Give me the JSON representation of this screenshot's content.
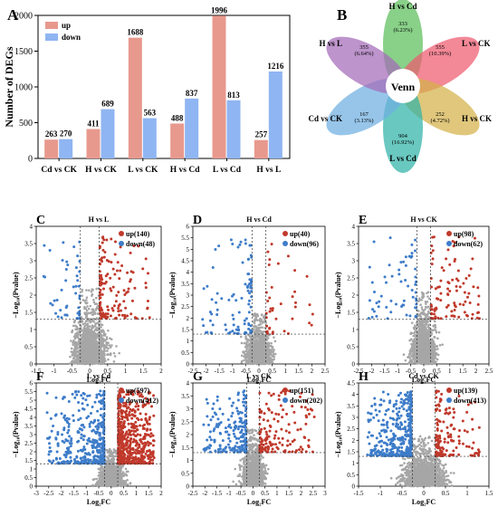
{
  "panels": {
    "A": "A",
    "B": "B",
    "C": "C",
    "D": "D",
    "E": "E",
    "F": "F",
    "G": "G",
    "H": "H"
  },
  "chart_data": [
    {
      "id": "A",
      "type": "bar",
      "ylabel": "Number of DEGs",
      "ylim": [
        0,
        2000
      ],
      "yticks": [
        0,
        500,
        1000,
        1500,
        2000
      ],
      "categories": [
        "Cd vs CK",
        "H vs CK",
        "L vs CK",
        "H vs Cd",
        "L vs Cd",
        "H vs L"
      ],
      "legend_placement": "top-left",
      "series": [
        {
          "name": "up",
          "color": "#E8998D",
          "values": [
            263,
            411,
            1688,
            488,
            1996,
            257
          ]
        },
        {
          "name": "down",
          "color": "#8FB5F2",
          "values": [
            270,
            689,
            563,
            837,
            813,
            1216
          ]
        }
      ]
    },
    {
      "id": "B",
      "type": "venn",
      "center_label": "Venn",
      "sets": [
        {
          "name": "H vs Cd",
          "count": "333",
          "pct": "(6.23%)",
          "color": "#5BBE5B"
        },
        {
          "name": "L vs CK",
          "count": "555",
          "pct": "(10.39%)",
          "color": "#EE5A6F"
        },
        {
          "name": "H vs CK",
          "count": "252",
          "pct": "(4.72%)",
          "color": "#D4B24A"
        },
        {
          "name": "L vs Cd",
          "count": "904",
          "pct": "(16.92%)",
          "color": "#2FB3A8"
        },
        {
          "name": "Cd vs CK",
          "count": "167",
          "pct": "(3.13%)",
          "color": "#6FAEE0"
        },
        {
          "name": "H vs L",
          "count": "355",
          "pct": "(6.64%)",
          "color": "#A46BB8"
        }
      ]
    },
    {
      "id": "C",
      "type": "scatter",
      "title": "H vs L",
      "xlabel": "Log₂FC",
      "ylabel": "−Log₁₀(Pvalue)",
      "xlim": [
        -1.5,
        2
      ],
      "xticks": [
        -1.5,
        -1,
        -0.5,
        0,
        0.5,
        1,
        1.5,
        2
      ],
      "ylim": [
        0,
        4
      ],
      "yticks": [
        0,
        0.5,
        1,
        1.5,
        2,
        2.5,
        3,
        3.5,
        4
      ],
      "legend": [
        {
          "name": "up(140)",
          "color": "#C0392B"
        },
        {
          "name": "down(48)",
          "color": "#3D7CC9"
        }
      ],
      "thresholds": {
        "fc": [
          -0.263,
          0.263
        ],
        "p": 1.301
      },
      "counts": {
        "up": 140,
        "down": 48,
        "ns": 1300
      },
      "seed": 11
    },
    {
      "id": "D",
      "type": "scatter",
      "title": "H vs Cd",
      "xlabel": "Log₂FC",
      "ylabel": "−Log₁₀(Pvalue)",
      "xlim": [
        -2.5,
        2.5
      ],
      "xticks": [
        -2.5,
        -2,
        -1.5,
        -1,
        -0.5,
        0,
        0.5,
        1,
        1.5,
        2,
        2.5
      ],
      "ylim": [
        0,
        6
      ],
      "yticks": [
        0,
        0.5,
        1,
        1.5,
        2,
        2.5,
        3,
        3.5,
        4,
        4.5,
        5,
        5.5,
        6
      ],
      "legend": [
        {
          "name": "up(40)",
          "color": "#C0392B"
        },
        {
          "name": "down(96)",
          "color": "#3D7CC9"
        }
      ],
      "thresholds": {
        "fc": [
          -0.263,
          0.263
        ],
        "p": 1.301
      },
      "counts": {
        "up": 40,
        "down": 96,
        "ns": 1300
      },
      "seed": 23
    },
    {
      "id": "E",
      "type": "scatter",
      "title": "H vs CK",
      "xlabel": "Log₂FC",
      "ylabel": "−Log₁₀(Pvalue)",
      "xlim": [
        -2.5,
        2.5
      ],
      "xticks": [
        -2.5,
        -2,
        -1.5,
        -1,
        -0.5,
        0,
        0.5,
        1,
        1.5,
        2,
        2.5
      ],
      "ylim": [
        0,
        4
      ],
      "yticks": [
        0,
        0.5,
        1,
        1.5,
        2,
        2.5,
        3,
        3.5,
        4
      ],
      "legend": [
        {
          "name": "up(98)",
          "color": "#C0392B"
        },
        {
          "name": "down(62)",
          "color": "#3D7CC9"
        }
      ],
      "thresholds": {
        "fc": [
          -0.263,
          0.263
        ],
        "p": 1.301
      },
      "counts": {
        "up": 98,
        "down": 62,
        "ns": 1300
      },
      "seed": 37
    },
    {
      "id": "F",
      "type": "scatter",
      "title": "L vs Cd",
      "xlabel": "Log₂FC",
      "ylabel": "−Log₁₀(Pvalue)",
      "xlim": [
        -3,
        2
      ],
      "xticks": [
        -3,
        -2.5,
        -2,
        -1.5,
        -1,
        -0.5,
        0,
        0.5,
        1,
        1.5,
        2
      ],
      "ylim": [
        0,
        6
      ],
      "yticks": [
        0,
        0.5,
        1,
        1.5,
        2,
        2.5,
        3,
        3.5,
        4,
        4.5,
        5,
        5.5,
        6
      ],
      "legend": [
        {
          "name": "up(597)",
          "color": "#C0392B"
        },
        {
          "name": "down(412)",
          "color": "#3D7CC9"
        }
      ],
      "thresholds": {
        "fc": [
          -0.263,
          0.263
        ],
        "p": 1.301
      },
      "counts": {
        "up": 597,
        "down": 412,
        "ns": 1400
      },
      "seed": 41
    },
    {
      "id": "G",
      "type": "scatter",
      "title": "L vs CK",
      "xlabel": "Log₂FC",
      "ylabel": "−Log₁₀(Pvalue)",
      "xlim": [
        -2.5,
        3
      ],
      "xticks": [
        -2.5,
        -2,
        -1.5,
        -1,
        -0.5,
        0,
        0.5,
        1,
        1.5,
        2,
        2.5,
        3
      ],
      "ylim": [
        0,
        4
      ],
      "yticks": [
        0,
        0.5,
        1,
        1.5,
        2,
        2.5,
        3,
        3.5,
        4
      ],
      "legend": [
        {
          "name": "up(151)",
          "color": "#C0392B"
        },
        {
          "name": "down(202)",
          "color": "#3D7CC9"
        }
      ],
      "thresholds": {
        "fc": [
          -0.263,
          0.263
        ],
        "p": 1.301
      },
      "counts": {
        "up": 151,
        "down": 202,
        "ns": 1300
      },
      "seed": 53
    },
    {
      "id": "H",
      "type": "scatter",
      "title": "Cd vs CK",
      "xlabel": "Log₂FC",
      "ylabel": "−Log₁₀(Pvalue)",
      "xlim": [
        -1.5,
        1.5
      ],
      "xticks": [
        -1.5,
        -1,
        -0.5,
        0,
        0.5,
        1,
        1.5
      ],
      "ylim": [
        0,
        4.5
      ],
      "yticks": [
        0,
        0.5,
        1,
        1.5,
        2,
        2.5,
        3,
        3.5,
        4,
        4.5
      ],
      "legend": [
        {
          "name": "up(139)",
          "color": "#C0392B"
        },
        {
          "name": "down(413)",
          "color": "#3D7CC9"
        }
      ],
      "thresholds": {
        "fc": [
          -0.263,
          0.263
        ],
        "p": 1.301
      },
      "counts": {
        "up": 139,
        "down": 413,
        "ns": 1400
      },
      "seed": 67
    }
  ]
}
